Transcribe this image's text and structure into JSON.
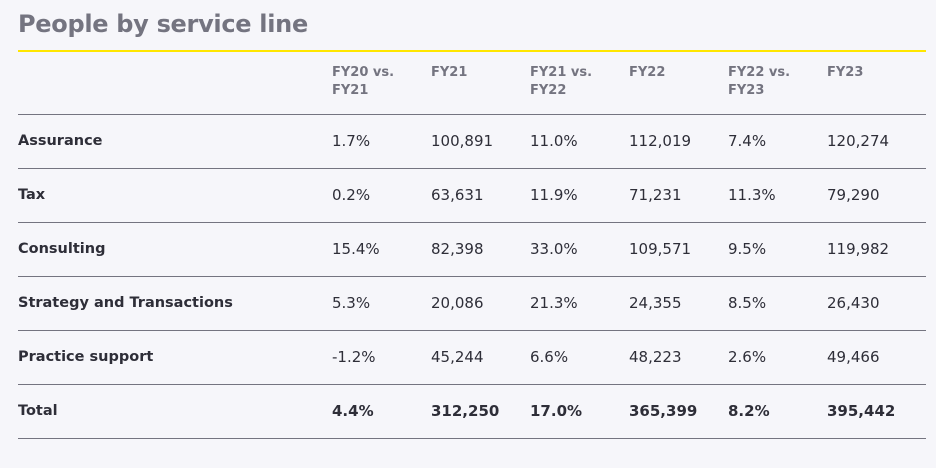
{
  "title": "People by service line",
  "columns": [
    {
      "line1": "FY20 vs.",
      "line2": "FY21"
    },
    {
      "line1": "FY21",
      "line2": ""
    },
    {
      "line1": "FY21 vs.",
      "line2": "FY22"
    },
    {
      "line1": "FY22",
      "line2": ""
    },
    {
      "line1": "FY22 vs.",
      "line2": "FY23"
    },
    {
      "line1": "FY23",
      "line2": ""
    }
  ],
  "rows": [
    {
      "label": "Assurance",
      "values": [
        "1.7%",
        "100,891",
        "11.0%",
        "112,019",
        "7.4%",
        "120,274"
      ]
    },
    {
      "label": "Tax",
      "values": [
        "0.2%",
        "63,631",
        "11.9%",
        "71,231",
        "11.3%",
        "79,290"
      ]
    },
    {
      "label": "Consulting",
      "values": [
        "15.4%",
        "82,398",
        "33.0%",
        "109,571",
        "9.5%",
        "119,982"
      ]
    },
    {
      "label": "Strategy and Transactions",
      "values": [
        "5.3%",
        "20,086",
        "21.3%",
        "24,355",
        "8.5%",
        "26,430"
      ]
    },
    {
      "label": "Practice support",
      "values": [
        "-1.2%",
        "45,244",
        "6.6%",
        "48,223",
        "2.6%",
        "49,466"
      ]
    }
  ],
  "total": {
    "label": "Total",
    "values": [
      "4.4%",
      "312,250",
      "17.0%",
      "365,399",
      "8.2%",
      "395,442"
    ]
  },
  "colors": {
    "accent": "#ffe600",
    "heading": "#747480",
    "text": "#2e2e38",
    "background": "#f6f6fa"
  }
}
